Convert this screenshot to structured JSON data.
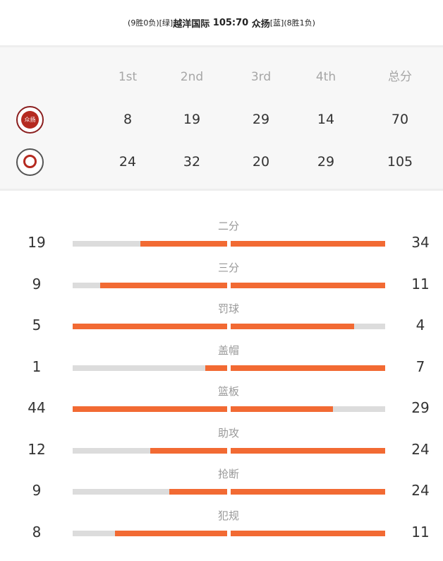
{
  "header": {
    "home_record": "(9胜0负)",
    "home_color": "[绿]",
    "home_name": "越洋国际",
    "score": "105:70",
    "away_name": "众扬",
    "away_color": "[蓝]",
    "away_record": "(8胜1负)"
  },
  "scoreboard": {
    "columns": [
      "1st",
      "2nd",
      "3rd",
      "4th",
      "总分"
    ],
    "rows": [
      {
        "team_icon": "zhongyang-logo-icon",
        "scores": [
          "8",
          "19",
          "29",
          "14",
          "70"
        ]
      },
      {
        "team_icon": "yueyang-logo-icon",
        "scores": [
          "24",
          "32",
          "20",
          "29",
          "105"
        ]
      }
    ]
  },
  "stats": [
    {
      "label": "二分",
      "left": "19",
      "right": "34",
      "left_share": 0.56,
      "right_share": 1.0
    },
    {
      "label": "三分",
      "left": "9",
      "right": "11",
      "left_share": 0.82,
      "right_share": 1.0
    },
    {
      "label": "罚球",
      "left": "5",
      "right": "4",
      "left_share": 1.0,
      "right_share": 0.8
    },
    {
      "label": "盖帽",
      "left": "1",
      "right": "7",
      "left_share": 0.14,
      "right_share": 1.0
    },
    {
      "label": "篮板",
      "left": "44",
      "right": "29",
      "left_share": 1.0,
      "right_share": 0.66
    },
    {
      "label": "助攻",
      "left": "12",
      "right": "24",
      "left_share": 0.5,
      "right_share": 1.0
    },
    {
      "label": "抢断",
      "left": "9",
      "right": "24",
      "left_share": 0.375,
      "right_share": 1.0
    },
    {
      "label": "犯规",
      "left": "8",
      "right": "11",
      "left_share": 0.727,
      "right_share": 1.0
    }
  ],
  "colors": {
    "accent": "#f26a33",
    "track": "#dcdcdc",
    "panel": "#f7f7f7"
  }
}
